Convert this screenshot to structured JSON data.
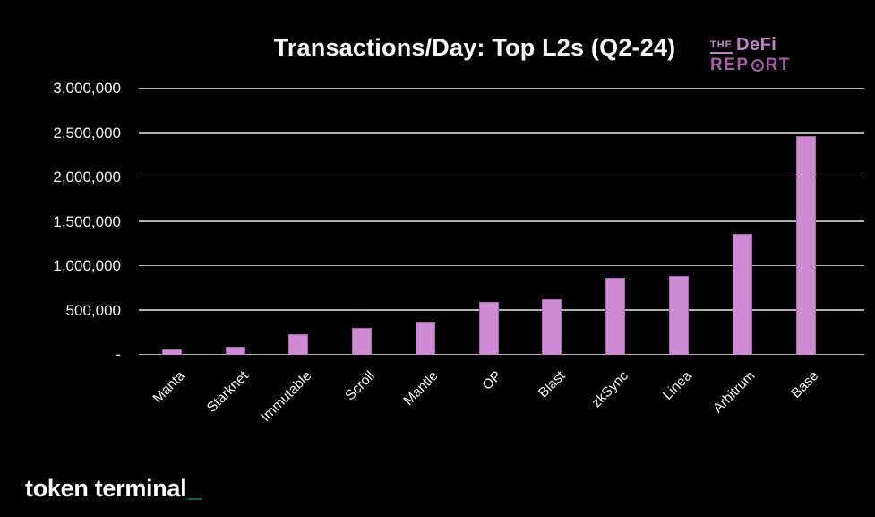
{
  "header": {
    "title": "Transactions/Day: Top L2s (Q2-24)"
  },
  "branding": {
    "defi_report": {
      "the": "THE",
      "defi": "DeFi",
      "rep": "REP",
      "rt": "RT",
      "line1_color": "#c77fc7",
      "line2_color": "#a85ea8"
    },
    "token_terminal": {
      "text": "token terminal",
      "cursor": "_",
      "cursor_color": "#26c485"
    }
  },
  "chart_data": {
    "type": "bar",
    "title": "Transactions/Day: Top L2s (Q2-24)",
    "categories": [
      "Manta",
      "Starknet",
      "Immutable",
      "Scroll",
      "Mantle",
      "OP",
      "Blast",
      "zkSync",
      "Linea",
      "Arbitrum",
      "Base"
    ],
    "values": [
      65000,
      90000,
      230000,
      300000,
      370000,
      600000,
      630000,
      870000,
      890000,
      1360000,
      2465000
    ],
    "xlabel": "",
    "ylabel": "",
    "ylim": [
      0,
      3000000
    ],
    "ytick_labels": [
      "-",
      "500,000",
      "1,000,000",
      "1,500,000",
      "2,000,000",
      "2,500,000",
      "3,000,000"
    ],
    "grid": true,
    "legend": false,
    "gridline_color": "#b3b0b0",
    "bar_color": "#ce8ad2",
    "bar_border_color": "#aa66ae",
    "background_color": "#000000",
    "text_color": "#f2f2f2"
  }
}
